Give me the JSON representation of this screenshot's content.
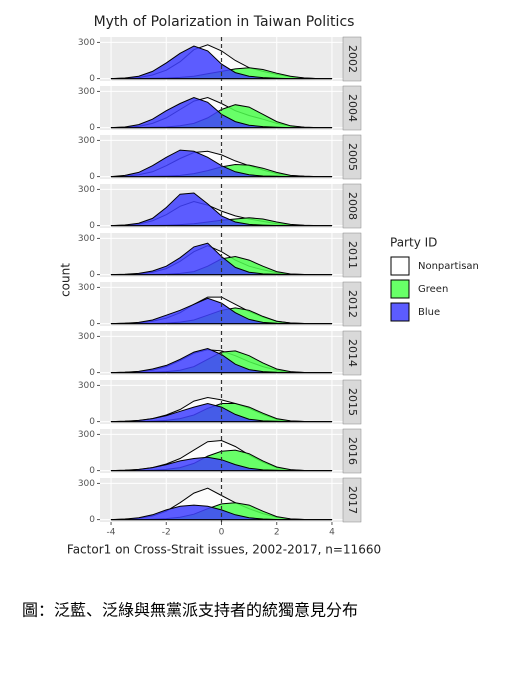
{
  "chart_data": {
    "type": "density",
    "title": "Myth of Polarization in Taiwan Politics",
    "x_label": "Factor1 on Cross-Strait issues, 2002-2017, n=11660",
    "y_label": "count",
    "legend_title": "Party ID",
    "series": [
      {
        "name": "Nonpartisan",
        "color": "#ffffff"
      },
      {
        "name": "Green",
        "color": "#4dff4d"
      },
      {
        "name": "Blue",
        "color": "#4040ff"
      }
    ],
    "x": [
      -4,
      -3.5,
      -3,
      -2.5,
      -2,
      -1.5,
      -1,
      -0.5,
      0,
      0.5,
      1,
      1.5,
      2,
      2.5,
      3,
      3.5,
      4
    ],
    "xlim": [
      -4.4,
      4.4
    ],
    "xticks": [
      -4,
      -2,
      0,
      2,
      4
    ],
    "ylim": [
      -20,
      345
    ],
    "yticks": [
      0,
      300
    ],
    "reference_line": 0,
    "facets": [
      {
        "label": "2002",
        "values": [
          [
            0,
            2,
            8,
            30,
            70,
            140,
            240,
            280,
            230,
            150,
            90,
            60,
            35,
            15,
            5,
            0,
            0
          ],
          [
            0,
            0,
            0,
            2,
            5,
            10,
            20,
            40,
            60,
            80,
            90,
            75,
            45,
            20,
            5,
            0,
            0
          ],
          [
            0,
            5,
            20,
            60,
            130,
            210,
            270,
            230,
            120,
            50,
            20,
            8,
            3,
            0,
            0,
            0,
            0
          ]
        ]
      },
      {
        "label": "2004",
        "values": [
          [
            0,
            2,
            10,
            35,
            80,
            150,
            220,
            250,
            200,
            140,
            100,
            70,
            35,
            12,
            3,
            0,
            0
          ],
          [
            0,
            0,
            0,
            2,
            5,
            15,
            35,
            80,
            150,
            190,
            170,
            110,
            50,
            15,
            3,
            0,
            0
          ],
          [
            0,
            5,
            25,
            70,
            140,
            200,
            250,
            210,
            110,
            50,
            20,
            8,
            3,
            0,
            0,
            0,
            0
          ]
        ]
      },
      {
        "label": "2005",
        "values": [
          [
            0,
            3,
            15,
            40,
            90,
            150,
            200,
            210,
            180,
            130,
            90,
            55,
            25,
            8,
            2,
            0,
            0
          ],
          [
            0,
            0,
            0,
            2,
            5,
            10,
            25,
            50,
            80,
            100,
            95,
            70,
            35,
            10,
            2,
            0,
            0
          ],
          [
            0,
            10,
            35,
            90,
            160,
            220,
            210,
            160,
            90,
            40,
            15,
            5,
            2,
            0,
            0,
            0,
            0
          ]
        ]
      },
      {
        "label": "2008",
        "values": [
          [
            0,
            3,
            12,
            40,
            90,
            160,
            200,
            170,
            120,
            80,
            55,
            35,
            15,
            5,
            1,
            0,
            0
          ],
          [
            0,
            0,
            0,
            1,
            3,
            8,
            15,
            30,
            45,
            55,
            65,
            55,
            30,
            10,
            2,
            0,
            0
          ],
          [
            0,
            5,
            20,
            60,
            150,
            260,
            270,
            180,
            80,
            30,
            10,
            4,
            1,
            0,
            0,
            0,
            0
          ]
        ]
      },
      {
        "label": "2011",
        "values": [
          [
            0,
            1,
            6,
            20,
            50,
            110,
            190,
            240,
            190,
            120,
            70,
            40,
            15,
            4,
            1,
            0,
            0
          ],
          [
            0,
            0,
            0,
            1,
            3,
            10,
            25,
            70,
            130,
            150,
            120,
            70,
            25,
            5,
            1,
            0,
            0
          ],
          [
            0,
            2,
            10,
            30,
            70,
            140,
            230,
            260,
            150,
            60,
            20,
            6,
            2,
            0,
            0,
            0,
            0
          ]
        ]
      },
      {
        "label": "2012",
        "values": [
          [
            0,
            2,
            6,
            20,
            45,
            90,
            160,
            220,
            220,
            160,
            100,
            55,
            20,
            5,
            1,
            0,
            0
          ],
          [
            0,
            0,
            0,
            1,
            4,
            12,
            30,
            70,
            110,
            130,
            110,
            60,
            20,
            5,
            1,
            0,
            0
          ],
          [
            0,
            3,
            10,
            30,
            70,
            110,
            160,
            210,
            170,
            90,
            35,
            10,
            3,
            0,
            0,
            0,
            0
          ]
        ]
      },
      {
        "label": "2014",
        "values": [
          [
            0,
            2,
            8,
            20,
            50,
            100,
            160,
            190,
            180,
            140,
            90,
            50,
            20,
            5,
            1,
            0,
            0
          ],
          [
            0,
            0,
            1,
            3,
            8,
            20,
            50,
            110,
            170,
            180,
            140,
            80,
            30,
            8,
            1,
            0,
            0
          ],
          [
            0,
            3,
            10,
            30,
            60,
            110,
            170,
            200,
            150,
            70,
            25,
            8,
            2,
            0,
            0,
            0,
            0
          ]
        ]
      },
      {
        "label": "2015",
        "values": [
          [
            0,
            2,
            8,
            25,
            55,
            100,
            170,
            200,
            180,
            150,
            110,
            60,
            20,
            5,
            1,
            0,
            0
          ],
          [
            0,
            0,
            1,
            4,
            10,
            25,
            55,
            110,
            150,
            150,
            120,
            70,
            25,
            6,
            1,
            0,
            0
          ],
          [
            0,
            3,
            10,
            25,
            50,
            85,
            120,
            150,
            120,
            60,
            20,
            6,
            2,
            0,
            0,
            0,
            0
          ]
        ]
      },
      {
        "label": "2016",
        "values": [
          [
            0,
            2,
            8,
            25,
            55,
            100,
            170,
            240,
            250,
            200,
            130,
            70,
            25,
            6,
            1,
            0,
            0
          ],
          [
            0,
            0,
            1,
            4,
            10,
            25,
            60,
            120,
            160,
            170,
            140,
            80,
            30,
            8,
            1,
            0,
            0
          ],
          [
            0,
            3,
            10,
            25,
            50,
            80,
            100,
            110,
            90,
            50,
            20,
            6,
            2,
            0,
            0,
            0,
            0
          ]
        ]
      },
      {
        "label": "2017",
        "values": [
          [
            0,
            2,
            10,
            30,
            70,
            140,
            220,
            260,
            200,
            140,
            90,
            50,
            20,
            5,
            1,
            0,
            0
          ],
          [
            0,
            0,
            1,
            3,
            8,
            20,
            45,
            90,
            130,
            140,
            120,
            70,
            25,
            6,
            1,
            0,
            0
          ],
          [
            0,
            5,
            15,
            40,
            80,
            110,
            120,
            110,
            80,
            40,
            15,
            5,
            1,
            0,
            0,
            0,
            0
          ]
        ]
      }
    ]
  },
  "caption": "圖：泛藍、泛綠與無黨派支持者的統獨意見分布"
}
